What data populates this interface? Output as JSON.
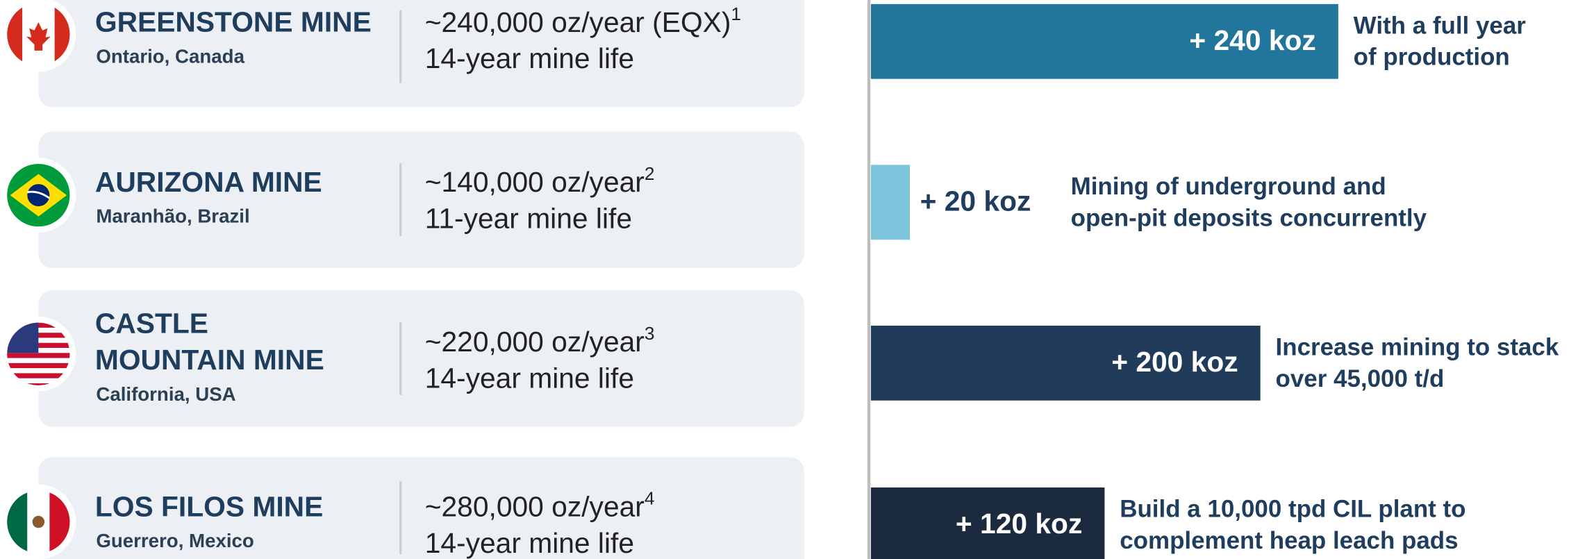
{
  "mines": [
    {
      "name": [
        "GREENSTONE MINE"
      ],
      "location": "Ontario, Canada",
      "production": "~240,000 oz/year (EQX)",
      "footnote": "1",
      "mine_life": "14-year mine life",
      "value": 240,
      "value_label": "+ 240 koz",
      "description": [
        "With a full year",
        "of production"
      ],
      "color": "#23769b"
    },
    {
      "name": [
        "AURIZONA MINE"
      ],
      "location": "Maranhão, Brazil",
      "production": "~140,000 oz/year",
      "footnote": "2",
      "mine_life": "11-year mine life",
      "value": 20,
      "value_label": "+ 20 koz",
      "description": [
        "Mining of underground and",
        "open-pit deposits concurrently"
      ],
      "color": "#7cc3dc"
    },
    {
      "name": [
        "CASTLE",
        "MOUNTAIN MINE"
      ],
      "location": "California, USA",
      "production": "~220,000 oz/year",
      "footnote": "3",
      "mine_life": "14-year mine life",
      "value": 200,
      "value_label": "+ 200 koz",
      "description": [
        "Increase mining to stack",
        "over 45,000 t/d"
      ],
      "color": "#213b5b"
    },
    {
      "name": [
        "LOS FILOS MINE"
      ],
      "location": "Guerrero, Mexico",
      "production": "~280,000 oz/year",
      "footnote": "4",
      "mine_life": "14-year mine life",
      "value": 120,
      "value_label": "+ 120 koz",
      "description": [
        "Build a 10,000 tpd CIL plant to",
        "complement heap leach pads"
      ],
      "color": "#1b2a3f"
    }
  ]
}
